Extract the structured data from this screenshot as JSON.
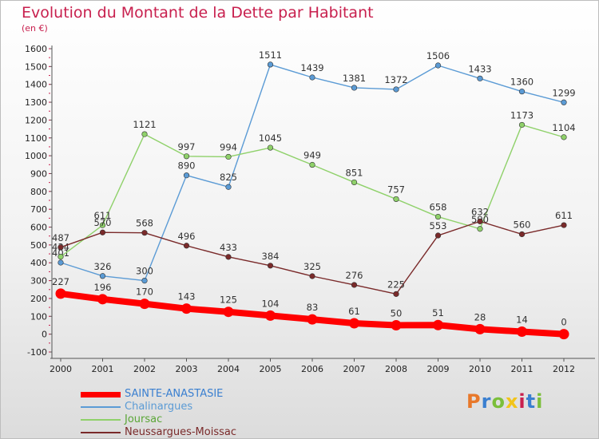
{
  "header": {
    "title": "Evolution du Montant de la Dette par Habitant",
    "subtitle": "(en €)"
  },
  "logo": {
    "letters": [
      "P",
      "r",
      "o",
      "x",
      "i",
      "t",
      "i"
    ],
    "colors": [
      "#e8782a",
      "#3a7fd0",
      "#7bbf3a",
      "#f2c41a",
      "#c8204e",
      "#3a7fd0",
      "#7bbf3a"
    ]
  },
  "chart_data": {
    "type": "line",
    "title": "Evolution du Montant de la Dette par Habitant",
    "subtitle": "(en €)",
    "xlabel": "",
    "ylabel": "",
    "x": [
      "2000",
      "2001",
      "2002",
      "2003",
      "2004",
      "2005",
      "2006",
      "2007",
      "2008",
      "2009",
      "2010",
      "2011",
      "2012"
    ],
    "ylim": [
      -100,
      1600
    ],
    "yticks": [
      "-100",
      "0",
      "100",
      "200",
      "300",
      "400",
      "500",
      "600",
      "700",
      "800",
      "900",
      "1000",
      "1100",
      "1200",
      "1300",
      "1400",
      "1500",
      "1600"
    ],
    "grid": false,
    "legend": "bottom-left",
    "series": [
      {
        "name": "SAINTE-ANASTASIE",
        "color": "#ff0000",
        "emphasis": true,
        "values": [
          227,
          196,
          170,
          143,
          125,
          104,
          83,
          61,
          50,
          51,
          28,
          14,
          0
        ],
        "labels": [
          "227",
          "196",
          "170",
          "143",
          "125",
          "104",
          "83",
          "61",
          "50",
          "51",
          "28",
          "14",
          "0"
        ]
      },
      {
        "name": "Chalinargues",
        "color": "#5b9bd5",
        "values": [
          401,
          326,
          300,
          890,
          825,
          1511,
          1439,
          1381,
          1372,
          1506,
          1433,
          1360,
          1299
        ],
        "labels": [
          "401",
          "326",
          "300",
          "890",
          "825",
          "1511",
          "1439",
          "1381",
          "1372",
          "1506",
          "1433",
          "1360",
          "1299"
        ]
      },
      {
        "name": "Joursac",
        "color": "#8fd16a",
        "values": [
          434,
          611,
          1121,
          997,
          994,
          1045,
          949,
          851,
          757,
          658,
          590,
          1173,
          1104
        ],
        "labels": [
          "434",
          "611",
          "1121",
          "997",
          "994",
          "1045",
          "949",
          "851",
          "757",
          "658",
          "590",
          "1173",
          "1104"
        ]
      },
      {
        "name": "Neussargues-Moissac",
        "color": "#7a2a2a",
        "values": [
          487,
          570,
          568,
          496,
          433,
          384,
          325,
          276,
          225,
          553,
          632,
          560,
          611
        ],
        "labels": [
          "487",
          "570",
          "568",
          "496",
          "433",
          "384",
          "325",
          "276",
          "225",
          "553",
          "632",
          "560",
          "611"
        ]
      }
    ]
  }
}
